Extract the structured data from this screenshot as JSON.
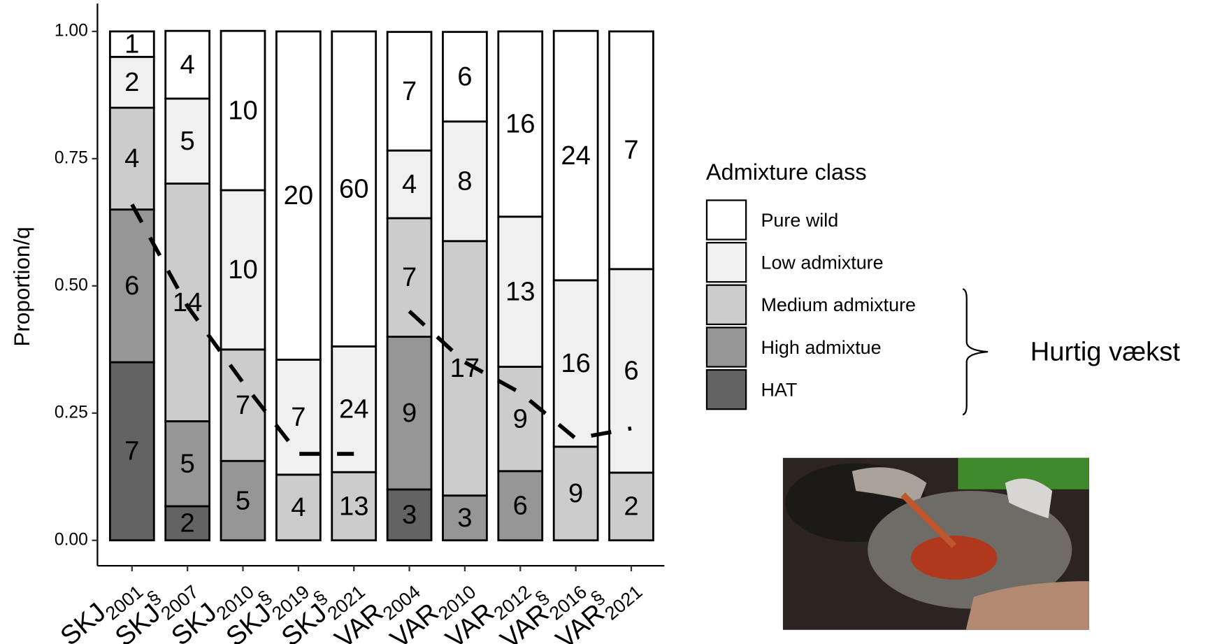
{
  "chart_data": {
    "type": "stacked_bar",
    "y_label": "Proportion/q",
    "ylim": [
      -0.05,
      1.05
    ],
    "yticks": [
      {
        "value": 0,
        "label": "0.00"
      },
      {
        "value": 0.25,
        "label": "0.25"
      },
      {
        "value": 0.5,
        "label": "0.50"
      },
      {
        "value": 0.75,
        "label": "0.75"
      },
      {
        "value": 1,
        "label": "1.00"
      }
    ],
    "grid": false,
    "categories": [
      {
        "name": "SKJ",
        "sub": "2001"
      },
      {
        "name": "SKJ",
        "sub": "2007",
        "sup": "§"
      },
      {
        "name": "SKJ",
        "sub": "2010"
      },
      {
        "name": "SKJ",
        "sub": "2019",
        "sup": "§"
      },
      {
        "name": "SKJ",
        "sub": "2021",
        "sup": "§"
      },
      {
        "name": "VAR",
        "sub": "2004"
      },
      {
        "name": "VAR",
        "sub": "2010"
      },
      {
        "name": "VAR",
        "sub": "2012"
      },
      {
        "name": "VAR",
        "sub": "2016",
        "sup": "§"
      },
      {
        "name": "VAR",
        "sub": "2021",
        "sup": "§"
      }
    ],
    "legend_title": "Admixture class",
    "series": [
      {
        "name": "HAT",
        "color": "#636363",
        "values": [
          0.35,
          0.067,
          null,
          null,
          null,
          0.1,
          null,
          null,
          null,
          null
        ],
        "counts": [
          7,
          2,
          null,
          null,
          null,
          3,
          null,
          null,
          null,
          null
        ]
      },
      {
        "name": "High admixtue",
        "color": "#969696",
        "values": [
          0.3,
          0.167,
          0.156,
          null,
          null,
          0.3,
          0.088,
          0.136,
          null,
          null
        ],
        "counts": [
          6,
          5,
          5,
          null,
          null,
          9,
          3,
          6,
          null,
          null
        ]
      },
      {
        "name": "Medium admixture",
        "color": "#cccccc",
        "values": [
          0.2,
          0.467,
          0.219,
          0.129,
          0.134,
          0.233,
          0.5,
          0.205,
          0.184,
          0.133
        ],
        "counts": [
          4,
          14,
          7,
          4,
          13,
          7,
          17,
          9,
          9,
          2
        ]
      },
      {
        "name": "Low admixture",
        "color": "#f0f0f0",
        "values": [
          0.1,
          0.167,
          0.313,
          0.226,
          0.247,
          0.133,
          0.235,
          0.295,
          0.327,
          0.4
        ],
        "counts": [
          2,
          5,
          10,
          7,
          24,
          4,
          8,
          13,
          16,
          6
        ]
      },
      {
        "name": "Pure wild",
        "color": "#ffffff",
        "values": [
          0.05,
          0.133,
          0.313,
          0.645,
          0.619,
          0.233,
          0.176,
          0.364,
          0.49,
          0.467
        ],
        "counts": [
          1,
          4,
          10,
          20,
          60,
          7,
          6,
          16,
          24,
          7
        ]
      }
    ],
    "trend_lines": [
      {
        "color": "#000000",
        "values": [
          0.66,
          0.46,
          0.31,
          0.17,
          0.17,
          null,
          null,
          null,
          null,
          null
        ]
      },
      {
        "color": "#000000",
        "values": [
          null,
          null,
          null,
          null,
          null,
          0.45,
          0.35,
          0.29,
          0.2,
          0.22
        ]
      }
    ],
    "annotation": "Hurtig vækst"
  }
}
